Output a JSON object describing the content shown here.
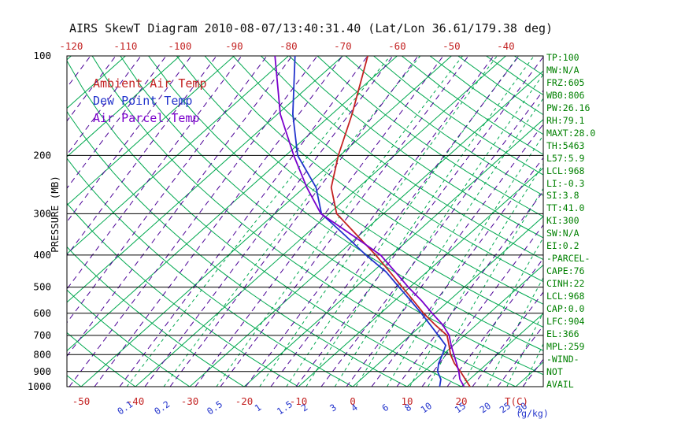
{
  "title": "AIRS SkewT Diagram 2010-08-07/13:40:31.40 (Lat/Lon 36.61/179.38 deg)",
  "axes": {
    "pressure_label": "PRESSURE (MB)",
    "pressure_ticks": [
      100,
      200,
      300,
      400,
      500,
      600,
      700,
      800,
      900,
      1000
    ],
    "top_temp_ticks": [
      -120,
      -110,
      -100,
      -90,
      -80,
      -70,
      -60,
      -50,
      -40
    ],
    "bottom_temp_ticks": [
      -50,
      -40,
      -30,
      -20,
      -10,
      0,
      10,
      20
    ],
    "temp_unit_label": "T(C)",
    "mixing_ratio_ticks": [
      0.1,
      0.2,
      0.5,
      1,
      1.5,
      2,
      3,
      4,
      6,
      8,
      10,
      15,
      20,
      25,
      30
    ],
    "mixing_ratio_unit_label": "(g/kg)"
  },
  "legend": [
    {
      "label": "Ambient Air Temp",
      "color": "#c32222"
    },
    {
      "label": "Dew Point Temp",
      "color": "#2233cc"
    },
    {
      "label": "Air Parcel Temp",
      "color": "#7a00cc"
    }
  ],
  "stats": [
    "TP:100",
    "MW:N/A",
    "FRZ:605",
    "WB0:806",
    "PW:26.16",
    "RH:79.1",
    "MAXT:28.0",
    "TH:5463",
    "L57:5.9",
    "LCL:968",
    "LI:-0.3",
    "SI:3.8",
    "TT:41.0",
    "KI:300",
    "SW:N/A",
    "EI:0.2",
    "-PARCEL-",
    "CAPE:76",
    "CINH:22",
    "LCL:968",
    "CAP:0.0",
    "LFC:904",
    "EL:366",
    "MPL:259",
    "-WIND-",
    "NOT",
    "AVAIL"
  ],
  "colors": {
    "graticule_green": "#00a84f",
    "moist_purple": "#4b0096",
    "temp_red": "#c32222",
    "ratio_blue": "#2233cc",
    "axis_black": "#000000",
    "stats_green": "#008000",
    "title_color": "#111111"
  },
  "chart_data": {
    "type": "line",
    "title": "AIRS SkewT Diagram 2010-08-07/13:40:31.40 (Lat/Lon 36.61/179.38 deg)",
    "x_axis_label": "Temperature T(C), skewed 45 deg",
    "y_axis_label": "PRESSURE (MB)",
    "y_scale": "log",
    "ylim": [
      1000,
      100
    ],
    "xlim_at_surface_c": [
      -55,
      33
    ],
    "grid": "skewt-graticule (isotherms, dry adiabats, moist adiabats, mixing ratio lines)",
    "legend_position": "top-left-inside",
    "series": [
      {
        "id": "ambient-temp",
        "name": "Ambient Air Temp",
        "color": "#c32222",
        "units": {
          "x": "C",
          "y": "mb"
        },
        "points": [
          [
            1000,
            21.6
          ],
          [
            950,
            19.2
          ],
          [
            900,
            16.7
          ],
          [
            850,
            13.9
          ],
          [
            800,
            11.4
          ],
          [
            750,
            9.2
          ],
          [
            700,
            6.8
          ],
          [
            650,
            2.4
          ],
          [
            600,
            -2.1
          ],
          [
            550,
            -6.5
          ],
          [
            500,
            -11.4
          ],
          [
            450,
            -16.8
          ],
          [
            400,
            -22.9
          ],
          [
            350,
            -30.2
          ],
          [
            300,
            -38.6
          ],
          [
            250,
            -45.0
          ],
          [
            200,
            -50.3
          ],
          [
            150,
            -56.3
          ],
          [
            100,
            -65.4
          ]
        ]
      },
      {
        "id": "dew-point",
        "name": "Dew Point Temp",
        "color": "#2233cc",
        "units": {
          "x": "C",
          "y": "mb"
        },
        "points": [
          [
            1000,
            16.0
          ],
          [
            950,
            14.7
          ],
          [
            900,
            12.5
          ],
          [
            850,
            11.0
          ],
          [
            800,
            9.9
          ],
          [
            750,
            8.6
          ],
          [
            700,
            5.2
          ],
          [
            650,
            1.5
          ],
          [
            600,
            -2.5
          ],
          [
            550,
            -7.0
          ],
          [
            500,
            -12.0
          ],
          [
            450,
            -17.5
          ],
          [
            400,
            -24.7
          ],
          [
            350,
            -32.4
          ],
          [
            300,
            -41.4
          ],
          [
            250,
            -47.8
          ],
          [
            200,
            -57.8
          ],
          [
            150,
            -67.2
          ],
          [
            100,
            -78.8
          ]
        ]
      },
      {
        "id": "air-parcel",
        "name": "Air Parcel Temp",
        "color": "#7a00cc",
        "units": {
          "x": "C",
          "y": "mb"
        },
        "points": [
          [
            1000,
            20.5
          ],
          [
            950,
            18.2
          ],
          [
            900,
            16.4
          ],
          [
            850,
            14.3
          ],
          [
            800,
            12.0
          ],
          [
            750,
            9.6
          ],
          [
            700,
            7.2
          ],
          [
            650,
            3.8
          ],
          [
            600,
            -0.5
          ],
          [
            550,
            -5.0
          ],
          [
            500,
            -10.3
          ],
          [
            450,
            -15.8
          ],
          [
            400,
            -22.0
          ],
          [
            350,
            -31.0
          ],
          [
            300,
            -41.5
          ],
          [
            250,
            -49.5
          ],
          [
            200,
            -58.5
          ],
          [
            150,
            -69.5
          ],
          [
            100,
            -82.5
          ]
        ]
      }
    ],
    "mapping": {
      "xLeft": 85,
      "xRight": 690,
      "yTop": 71,
      "yBottom": 491,
      "pTop": 100,
      "pBottom": 1000,
      "xRef": 448,
      "pxPerC": 6.9,
      "skew": 1.12
    },
    "graticule": {
      "isotherms": {
        "min": -200,
        "max": 60,
        "step": 10
      },
      "dry_adiabats": {
        "min": -60,
        "max": 200,
        "step": 10,
        "kappa": 0.2857
      },
      "moist_lines": {
        "x_start": -360,
        "x_end": 689,
        "spacing": 32,
        "rise": 315
      },
      "mixing_lines": {
        "p_from": 1000,
        "p_to": 100,
        "p_step": 25
      }
    }
  }
}
